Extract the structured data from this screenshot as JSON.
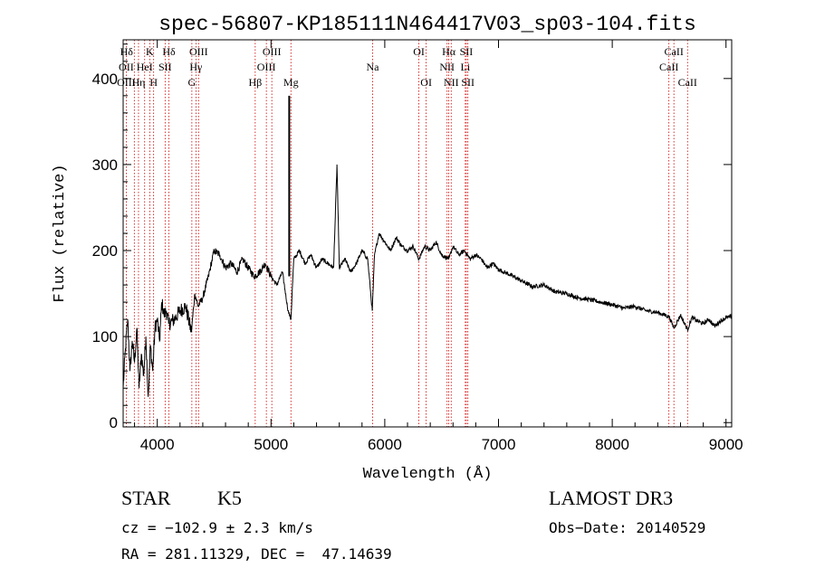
{
  "chart_data": {
    "type": "line",
    "title": "spec-56807-KP185111N464417V03_sp03-104.fits",
    "xlabel": "Wavelength (Å)",
    "ylabel": "Flux (relative)",
    "xlim": [
      3700,
      9050
    ],
    "ylim": [
      -5,
      445
    ],
    "x_ticks": [
      "4000",
      "5000",
      "6000",
      "7000",
      "8000",
      "9000"
    ],
    "y_ticks": [
      "0",
      "100",
      "200",
      "300",
      "400"
    ],
    "grid": false,
    "series": [
      {
        "x": [
          3700,
          3720,
          3740,
          3760,
          3780,
          3800,
          3820,
          3840,
          3860,
          3880,
          3900,
          3920,
          3940,
          3960,
          3980,
          4000,
          4020,
          4040,
          4060,
          4080,
          4100,
          4150,
          4200,
          4250,
          4300,
          4330,
          4360,
          4400,
          4450,
          4500,
          4550,
          4600,
          4650,
          4700,
          4750,
          4800,
          4850,
          4900,
          4950,
          5000,
          5050,
          5100,
          5150,
          5175,
          5200,
          5250,
          5300,
          5350,
          5400,
          5450,
          5500,
          5550,
          5580,
          5600,
          5650,
          5700,
          5750,
          5800,
          5850,
          5890,
          5910,
          5950,
          6000,
          6050,
          6100,
          6150,
          6200,
          6250,
          6300,
          6350,
          6400,
          6450,
          6500,
          6563,
          6600,
          6650,
          6700,
          6750,
          6800,
          6850,
          6900,
          6950,
          7000,
          7100,
          7200,
          7300,
          7400,
          7500,
          7600,
          7700,
          7800,
          7900,
          8000,
          8100,
          8200,
          8300,
          8400,
          8500,
          8542,
          8600,
          8662,
          8700,
          8750,
          8800,
          8850,
          8900,
          8950,
          9000,
          9050
        ],
        "y": [
          40,
          85,
          120,
          60,
          95,
          70,
          110,
          40,
          80,
          55,
          100,
          30,
          90,
          60,
          110,
          120,
          95,
          140,
          125,
          130,
          115,
          120,
          130,
          135,
          105,
          150,
          135,
          145,
          170,
          200,
          195,
          180,
          185,
          175,
          190,
          180,
          170,
          175,
          185,
          170,
          160,
          175,
          130,
          120,
          190,
          200,
          185,
          195,
          180,
          190,
          185,
          180,
          300,
          180,
          190,
          175,
          185,
          200,
          190,
          130,
          195,
          220,
          210,
          200,
          215,
          205,
          200,
          205,
          190,
          205,
          200,
          210,
          195,
          190,
          205,
          195,
          200,
          190,
          195,
          190,
          180,
          185,
          178,
          172,
          165,
          158,
          160,
          152,
          150,
          145,
          143,
          140,
          137,
          133,
          135,
          130,
          128,
          123,
          110,
          125,
          108,
          122,
          118,
          115,
          120,
          112,
          118,
          122,
          123
        ]
      }
    ],
    "annotations": [
      {
        "label": "Hδ",
        "x": 3730,
        "row": 1
      },
      {
        "label": "OII",
        "x": 3727,
        "row": 2
      },
      {
        "label": "OIII",
        "x": 3727,
        "row": 3
      },
      {
        "label": "K",
        "x": 3934,
        "row": 1
      },
      {
        "label": "HeI",
        "x": 3889,
        "row": 2
      },
      {
        "label": "Hη",
        "x": 3835,
        "row": 3
      },
      {
        "label": "Hδ",
        "x": 4102,
        "row": 1
      },
      {
        "label": "SII",
        "x": 4069,
        "row": 2
      },
      {
        "label": "H",
        "x": 3968,
        "row": 3
      },
      {
        "label": "OIII",
        "x": 4363,
        "row": 1
      },
      {
        "label": "Hγ",
        "x": 4340,
        "row": 2
      },
      {
        "label": "G",
        "x": 4304,
        "row": 3
      },
      {
        "label": "OIII",
        "x": 5007,
        "row": 1
      },
      {
        "label": "OIII",
        "x": 4959,
        "row": 2
      },
      {
        "label": "Hβ",
        "x": 4861,
        "row": 3
      },
      {
        "label": "Mg",
        "x": 5175,
        "row": 3
      },
      {
        "label": "Na",
        "x": 5893,
        "row": 2
      },
      {
        "label": "OI",
        "x": 6300,
        "row": 1
      },
      {
        "label": "OI",
        "x": 6364,
        "row": 3
      },
      {
        "label": "Hα",
        "x": 6563,
        "row": 1
      },
      {
        "label": "NII",
        "x": 6548,
        "row": 2
      },
      {
        "label": "NII",
        "x": 6584,
        "row": 3
      },
      {
        "label": "SII",
        "x": 6717,
        "row": 1
      },
      {
        "label": "Li",
        "x": 6708,
        "row": 2
      },
      {
        "label": "SII",
        "x": 6731,
        "row": 3
      },
      {
        "label": "CaII",
        "x": 8542,
        "row": 1
      },
      {
        "label": "CaII",
        "x": 8498,
        "row": 2
      },
      {
        "label": "CaII",
        "x": 8662,
        "row": 3
      }
    ],
    "line_markers": [
      3727,
      3798,
      3835,
      3889,
      3934,
      3968,
      4069,
      4102,
      4304,
      4340,
      4363,
      4861,
      4959,
      5007,
      5175,
      5893,
      6300,
      6364,
      6548,
      6563,
      6584,
      6708,
      6717,
      6731,
      8498,
      8542,
      8662
    ]
  },
  "info": {
    "object_class": "STAR",
    "subclass": "K5",
    "survey": "LAMOST DR3",
    "cz": "cz = −102.9 ± 2.3 km/s",
    "obs_date": "Obs−Date: 20140529",
    "coords": "RA = 281.11329, DEC =  47.14639"
  }
}
